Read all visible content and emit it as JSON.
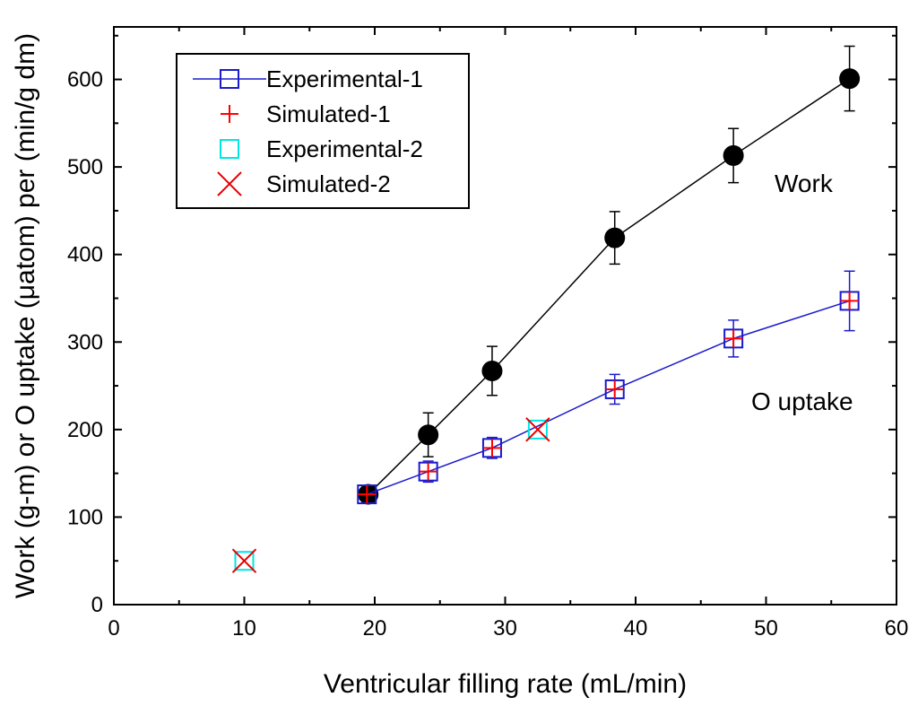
{
  "chart_data": {
    "type": "scatter",
    "title": "",
    "xlabel": "Ventricular filling rate (mL/min)",
    "ylabel": "Work (g-m) or O uptake (μatom) per (min/g dm)",
    "xlim": [
      0,
      60
    ],
    "ylim": [
      0,
      660
    ],
    "xticks": [
      0,
      10,
      20,
      30,
      40,
      50,
      60
    ],
    "yticks": [
      0,
      100,
      200,
      300,
      400,
      500,
      600
    ],
    "grid": false,
    "legend_position": "top-left",
    "annotations": [
      "Work",
      "O uptake"
    ],
    "colors": {
      "axis": "#000000",
      "work": "#000000",
      "experimental_1": "#1a1acc",
      "simulated_1": "#ff0000",
      "experimental_2": "#00e5e5",
      "simulated_2": "#e60000"
    },
    "series": [
      {
        "name": "Work",
        "in_legend": false,
        "marker": "filled-circle",
        "line": true,
        "x": [
          19.5,
          24.1,
          29.0,
          38.4,
          47.5,
          56.4
        ],
        "y": [
          126,
          194,
          267,
          419,
          513,
          601
        ],
        "err": [
          0,
          25,
          28,
          30,
          31,
          37
        ]
      },
      {
        "name": "Experimental-1",
        "in_legend": true,
        "marker": "open-square",
        "line": true,
        "x": [
          19.4,
          24.1,
          29.0,
          38.4,
          47.5,
          56.4
        ],
        "y": [
          126,
          152,
          179,
          246,
          304,
          347
        ],
        "err": [
          10,
          12,
          12,
          17,
          21,
          34
        ]
      },
      {
        "name": "Simulated-1",
        "in_legend": true,
        "marker": "plus",
        "line": false,
        "x": [
          19.4,
          24.1,
          29.0,
          38.4,
          47.5,
          56.4
        ],
        "y": [
          126,
          152,
          179,
          246,
          304,
          347
        ]
      },
      {
        "name": "Experimental-2",
        "in_legend": true,
        "marker": "open-square",
        "line": false,
        "x": [
          10.0,
          32.5
        ],
        "y": [
          50,
          200
        ]
      },
      {
        "name": "Simulated-2",
        "in_legend": true,
        "marker": "x",
        "line": false,
        "x": [
          10.0,
          32.5
        ],
        "y": [
          50,
          200
        ]
      }
    ]
  }
}
